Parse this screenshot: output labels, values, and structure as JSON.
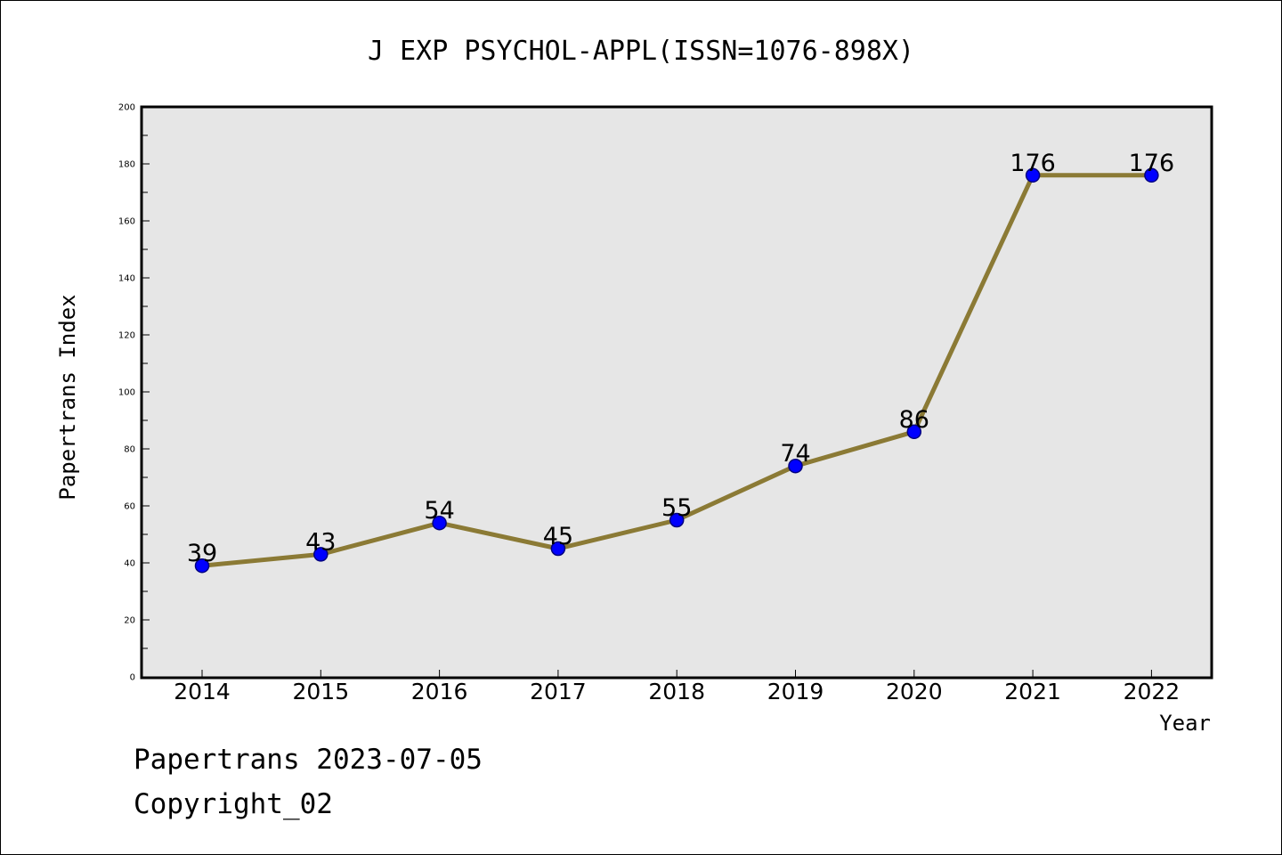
{
  "chart_data": {
    "type": "line",
    "title": "J EXP PSYCHOL-APPL(ISSN=1076-898X)",
    "xlabel": "Year",
    "ylabel": "Papertrans Index",
    "categories": [
      "2014",
      "2015",
      "2016",
      "2017",
      "2018",
      "2019",
      "2020",
      "2021",
      "2022"
    ],
    "values": [
      39,
      43,
      54,
      45,
      55,
      74,
      86,
      176,
      176
    ],
    "data_labels": [
      "39",
      "43",
      "54",
      "45",
      "55",
      "74",
      "86",
      "176",
      "176"
    ],
    "ylim": [
      0,
      200
    ],
    "yticks": [
      0,
      20,
      40,
      60,
      80,
      100,
      120,
      140,
      160,
      180,
      200
    ],
    "grid": false,
    "colors": {
      "line": "#8B7A35",
      "marker": "#0000FF",
      "marker_edge": "#000080",
      "plot_background": "#E6E6E6",
      "axis": "#000000"
    }
  },
  "footer": {
    "date_line": "Papertrans 2023-07-05",
    "copyright": "Copyright_02"
  }
}
